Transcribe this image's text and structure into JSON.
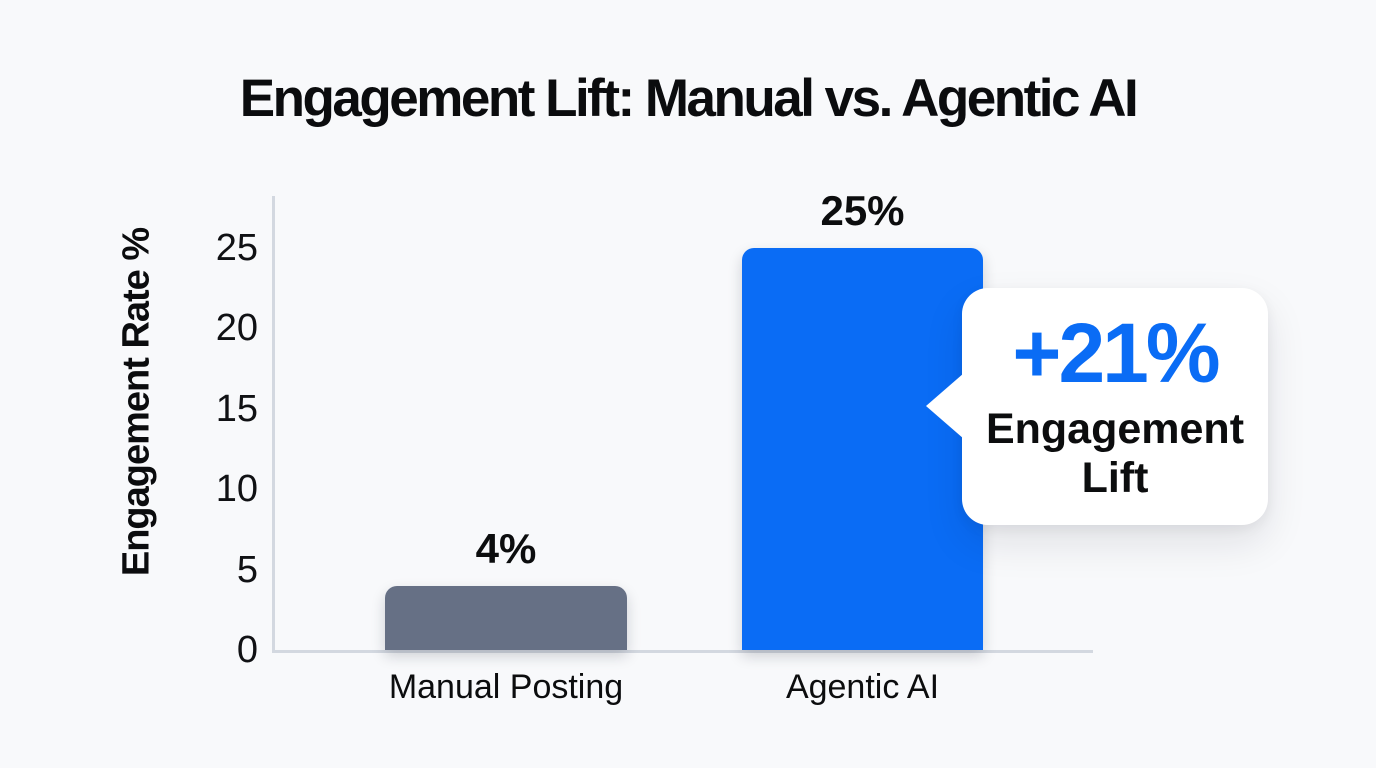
{
  "page": {
    "background_color": "#f8f9fb"
  },
  "chart_data": {
    "type": "bar",
    "title": "Engagement Lift: Manual vs. Agentic AI",
    "xlabel": "",
    "ylabel": "Engagement Rate %",
    "categories": [
      "Manual Posting",
      "Agentic AI"
    ],
    "values": [
      4,
      25
    ],
    "value_labels": [
      "4%",
      "25%"
    ],
    "bar_colors": [
      "#667085",
      "#0a6cf5"
    ],
    "ylim": [
      0,
      25
    ],
    "yticks": [
      0,
      5,
      10,
      15,
      20,
      25
    ],
    "grid": false,
    "legend": false,
    "axis_color": "#d3d8e0",
    "annotation": {
      "headline": "+21%",
      "line1": "Engagement",
      "line2": "Lift",
      "headline_color": "#0a6cf5",
      "attached_to": "Agentic AI"
    }
  }
}
